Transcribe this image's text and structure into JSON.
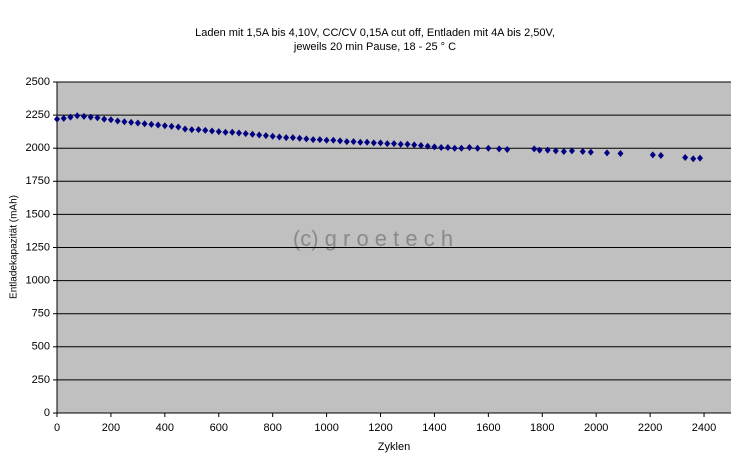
{
  "chart_data": {
    "type": "scatter",
    "title": "Laden mit 1,5A bis 4,10V, CC/CV 0,15A cut off, Entladen mit 4A bis 2,50V,",
    "subtitle": "jeweils 20 min Pause, 18 - 25 ° C",
    "xlabel": "Zyklen",
    "ylabel": "Entladekapazität (mAh)",
    "annotation": "(c) g r o e t e c h",
    "color": "#000080",
    "grid": true,
    "xlim": [
      0,
      2500
    ],
    "xticks": [
      0,
      200,
      400,
      600,
      800,
      1000,
      1200,
      1400,
      1600,
      1800,
      2000,
      2200,
      2400
    ],
    "ylim": [
      0,
      2500
    ],
    "yticks": [
      0,
      250,
      500,
      750,
      1000,
      1250,
      1500,
      1750,
      2000,
      2250,
      2500
    ],
    "x": [
      0,
      25,
      50,
      75,
      100,
      125,
      150,
      175,
      200,
      225,
      250,
      275,
      300,
      325,
      350,
      375,
      400,
      425,
      450,
      475,
      500,
      525,
      550,
      575,
      600,
      625,
      650,
      675,
      700,
      725,
      750,
      775,
      800,
      825,
      850,
      875,
      900,
      925,
      950,
      975,
      1000,
      1025,
      1050,
      1075,
      1100,
      1125,
      1150,
      1175,
      1200,
      1225,
      1250,
      1275,
      1300,
      1325,
      1350,
      1375,
      1400,
      1425,
      1450,
      1475,
      1500,
      1530,
      1560,
      1600,
      1640,
      1670,
      1770,
      1790,
      1820,
      1850,
      1880,
      1910,
      1950,
      1980,
      2040,
      2090,
      2210,
      2240,
      2330,
      2360,
      2385
    ],
    "values": [
      2220,
      2225,
      2235,
      2245,
      2240,
      2235,
      2230,
      2220,
      2215,
      2205,
      2200,
      2195,
      2190,
      2185,
      2180,
      2175,
      2170,
      2165,
      2160,
      2145,
      2140,
      2140,
      2135,
      2130,
      2125,
      2120,
      2120,
      2115,
      2110,
      2105,
      2100,
      2095,
      2090,
      2085,
      2080,
      2080,
      2075,
      2070,
      2065,
      2065,
      2060,
      2060,
      2055,
      2050,
      2050,
      2045,
      2045,
      2040,
      2040,
      2035,
      2035,
      2030,
      2030,
      2025,
      2020,
      2015,
      2010,
      2005,
      2005,
      2000,
      2000,
      2005,
      2000,
      2000,
      1995,
      1990,
      1995,
      1985,
      1985,
      1980,
      1975,
      1980,
      1975,
      1970,
      1965,
      1960,
      1950,
      1945,
      1930,
      1920,
      1925
    ]
  }
}
